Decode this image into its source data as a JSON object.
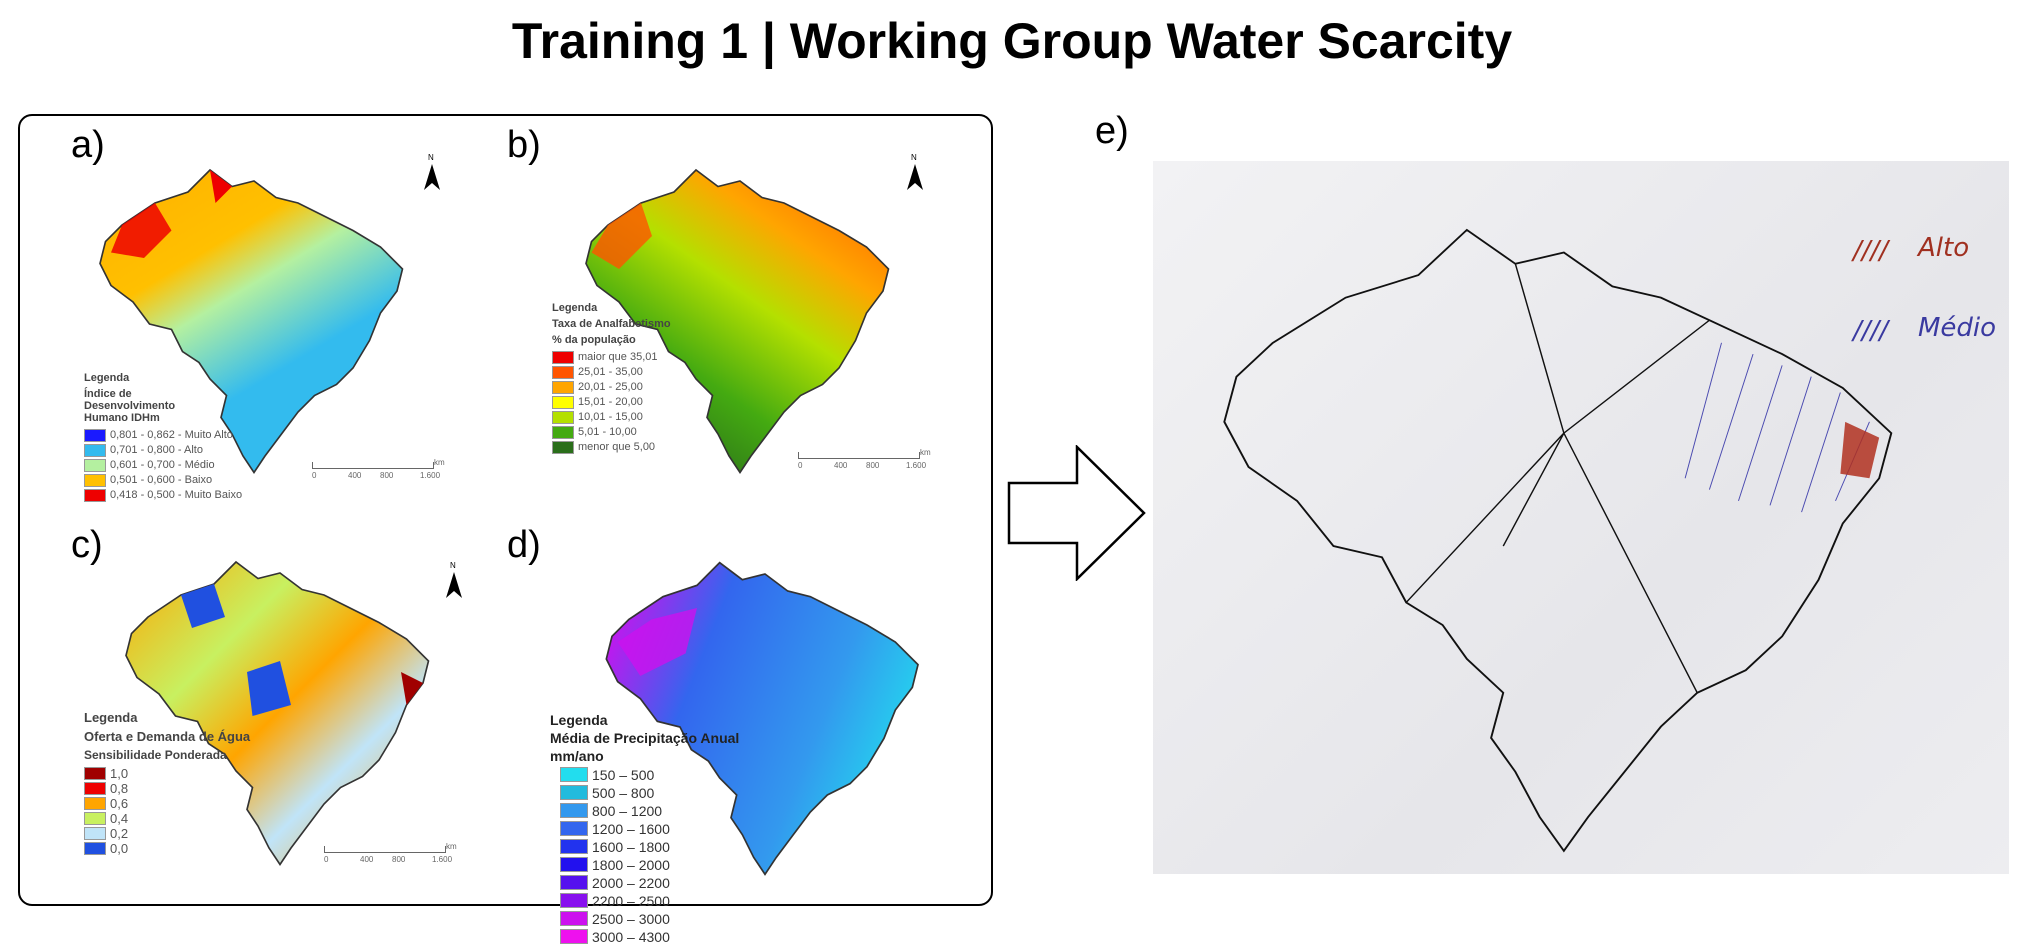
{
  "title": "Training 1 | Working Group Water Scarcity",
  "panels": {
    "a": {
      "label": "a)",
      "legend_heading": "Legenda",
      "legend_title": "Índice de Desenvolvimento Humano IDHm",
      "items": [
        {
          "color": "#1a1aff",
          "label": "0,801 - 0,862 - Muito Alto"
        },
        {
          "color": "#33bbee",
          "label": "0,701 - 0,800 - Alto"
        },
        {
          "color": "#b4f0a0",
          "label": "0,601 - 0,700 - Médio"
        },
        {
          "color": "#ffc000",
          "label": "0,501 - 0,600 - Baixo"
        },
        {
          "color": "#ee0000",
          "label": "0,418 - 0,500 - Muito Baixo"
        }
      ],
      "scale": [
        "0",
        "400",
        "800",
        "1.600"
      ],
      "scale_unit": "km",
      "north": "N"
    },
    "b": {
      "label": "b)",
      "legend_heading": "Legenda",
      "legend_title": "Taxa de Analfabetismo",
      "legend_subtitle": "% da população",
      "items": [
        {
          "color": "#ee0000",
          "label": "maior que 35,01"
        },
        {
          "color": "#ff5500",
          "label": "25,01 - 35,00"
        },
        {
          "color": "#ffa500",
          "label": "20,01 - 25,00"
        },
        {
          "color": "#ffff00",
          "label": "15,01 - 20,00"
        },
        {
          "color": "#b4e000",
          "label": "10,01 - 15,00"
        },
        {
          "color": "#44aa11",
          "label": "5,01 - 10,00"
        },
        {
          "color": "#2a6e1a",
          "label": "menor que 5,00"
        }
      ],
      "scale": [
        "0",
        "400",
        "800",
        "1.600"
      ],
      "scale_unit": "km",
      "north": "N"
    },
    "c": {
      "label": "c)",
      "legend_heading": "Legenda",
      "legend_title": "Oferta e Demanda de Água",
      "legend_subtitle": "Sensibilidade Ponderada",
      "items": [
        {
          "color": "#a00000",
          "label": "1,0"
        },
        {
          "color": "#ee0000",
          "label": "0,8"
        },
        {
          "color": "#ffa500",
          "label": "0,6"
        },
        {
          "color": "#c8f060",
          "label": "0,4"
        },
        {
          "color": "#c0e4f8",
          "label": "0,2"
        },
        {
          "color": "#2050e0",
          "label": "0,0"
        }
      ],
      "scale": [
        "0",
        "400",
        "800",
        "1.600"
      ],
      "scale_unit": "km",
      "north": "N"
    },
    "d": {
      "label": "d)",
      "legend_heading": "Legenda",
      "legend_title": "Média de Precipitação Anual",
      "legend_subtitle": "mm/ano",
      "items": [
        {
          "color": "#22ddee",
          "label": "150 – 500"
        },
        {
          "color": "#22bbdd",
          "label": "500 – 800"
        },
        {
          "color": "#3399ee",
          "label": "800 – 1200"
        },
        {
          "color": "#3366ee",
          "label": "1200 – 1600"
        },
        {
          "color": "#2233ee",
          "label": "1600 – 1800"
        },
        {
          "color": "#2211ee",
          "label": "1800 – 2000"
        },
        {
          "color": "#5511ee",
          "label": "2000 – 2200"
        },
        {
          "color": "#8811ee",
          "label": "2200 – 2500"
        },
        {
          "color": "#cc11ee",
          "label": "2500 – 3000"
        },
        {
          "color": "#ee11ee",
          "label": "3000 – 4300"
        }
      ]
    },
    "e": {
      "label": "e)",
      "hand_legend": [
        {
          "color": "#a03020",
          "label": "Alto"
        },
        {
          "color": "#3a3aa0",
          "label": "Médio"
        }
      ]
    }
  },
  "arrow_icon": "right-arrow-outline"
}
